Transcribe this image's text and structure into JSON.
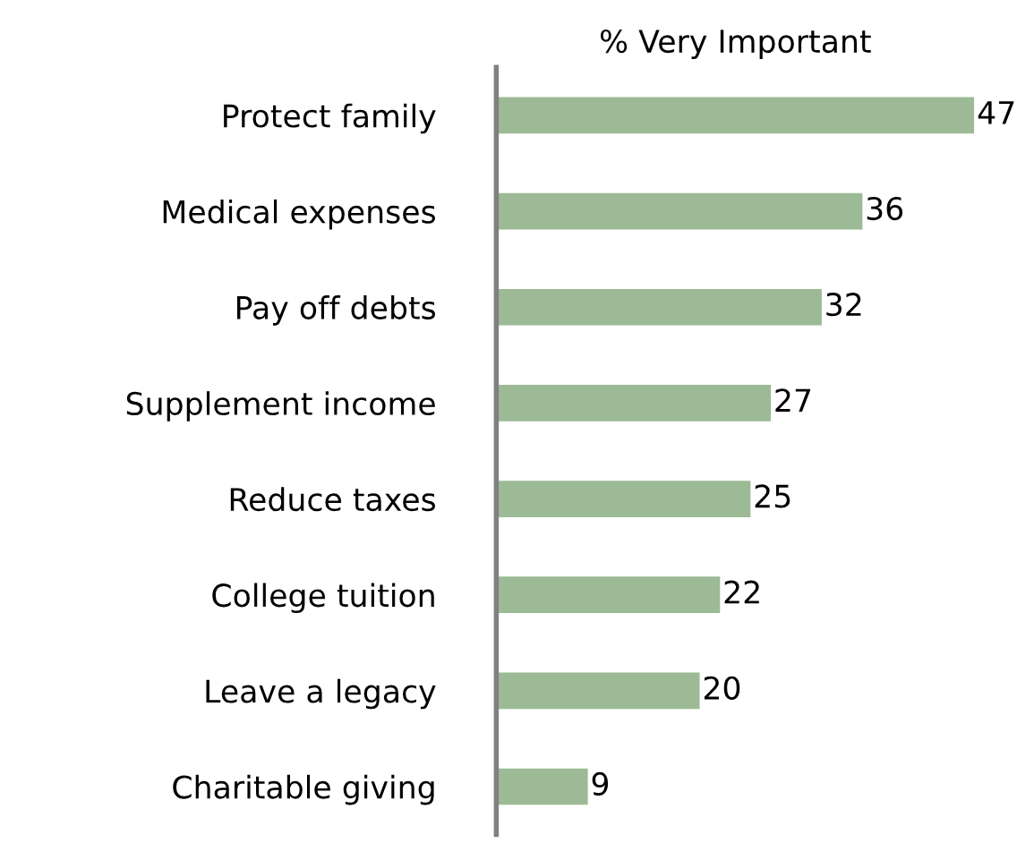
{
  "chart_data": {
    "type": "bar",
    "orientation": "horizontal",
    "title": "% Very Important",
    "categories": [
      "Protect family",
      "Medical expenses",
      "Pay off debts",
      "Supplement income",
      "Reduce taxes",
      "College tuition",
      "Leave a legacy",
      "Charitable giving"
    ],
    "values": [
      47,
      36,
      32,
      27,
      25,
      22,
      20,
      9
    ],
    "color": "#9dba96",
    "data_labels": true,
    "tick_labels": "y",
    "grid": false,
    "legend": false
  }
}
